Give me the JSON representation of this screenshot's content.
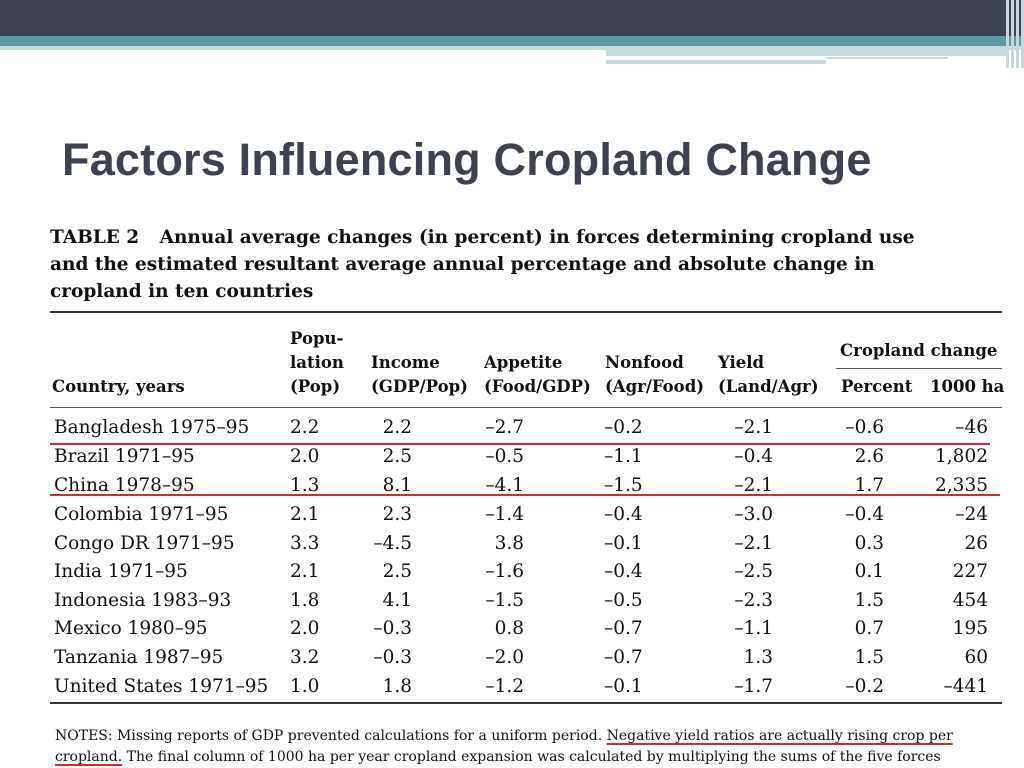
{
  "slide": {
    "title": "Factors Influencing Cropland Change"
  },
  "table": {
    "label": "TABLE 2",
    "caption": "Annual average changes (in percent) in forces determining cropland use and the estimated resultant average annual percentage and absolute change in cropland in ten countries",
    "headers": {
      "country": "Country, years",
      "pop_1": "Popu-",
      "pop_2": "lation",
      "pop_3": "(Pop)",
      "income_1": "Income",
      "income_2": "(GDP/Pop)",
      "appetite_1": "Appetite",
      "appetite_2": "(Food/GDP)",
      "nonfood_1": "Nonfood",
      "nonfood_2": "(Agr/Food)",
      "yield_1": "Yield",
      "yield_2": "(Land/Agr)",
      "cropland_change": "Cropland change",
      "percent": "Percent",
      "ha": "1000 ha"
    },
    "rows": [
      {
        "country": "Bangladesh 1975–95",
        "pop": "2.2",
        "income": "2.2",
        "appetite": "–2.7",
        "nonfood": "–0.2",
        "yield": "–2.1",
        "percent": "–0.6",
        "ha": "–46"
      },
      {
        "country": "Brazil 1971–95",
        "pop": "2.0",
        "income": "2.5",
        "appetite": "–0.5",
        "nonfood": "–1.1",
        "yield": "–0.4",
        "percent": "2.6",
        "ha": "1,802"
      },
      {
        "country": "China 1978–95",
        "pop": "1.3",
        "income": "8.1",
        "appetite": "–4.1",
        "nonfood": "–1.5",
        "yield": "–2.1",
        "percent": "1.7",
        "ha": "2,335"
      },
      {
        "country": "Colombia 1971–95",
        "pop": "2.1",
        "income": "2.3",
        "appetite": "–1.4",
        "nonfood": "–0.4",
        "yield": "–3.0",
        "percent": "–0.4",
        "ha": "–24"
      },
      {
        "country": "Congo DR 1971–95",
        "pop": "3.3",
        "income": "–4.5",
        "appetite": "3.8",
        "nonfood": "–0.1",
        "yield": "–2.1",
        "percent": "0.3",
        "ha": "26"
      },
      {
        "country": "India 1971–95",
        "pop": "2.1",
        "income": "2.5",
        "appetite": "–1.6",
        "nonfood": "–0.4",
        "yield": "–2.5",
        "percent": "0.1",
        "ha": "227"
      },
      {
        "country": "Indonesia 1983–93",
        "pop": "1.8",
        "income": "4.1",
        "appetite": "–1.5",
        "nonfood": "–0.5",
        "yield": "–2.3",
        "percent": "1.5",
        "ha": "454"
      },
      {
        "country": "Mexico 1980–95",
        "pop": "2.0",
        "income": "–0.3",
        "appetite": "0.8",
        "nonfood": "–0.7",
        "yield": "–1.1",
        "percent": "0.7",
        "ha": "195"
      },
      {
        "country": "Tanzania 1987–95",
        "pop": "3.2",
        "income": "–0.3",
        "appetite": "–2.0",
        "nonfood": "–0.7",
        "yield": "1.3",
        "percent": "1.5",
        "ha": "60"
      },
      {
        "country": "United States 1971–95",
        "pop": "1.0",
        "income": "1.8",
        "appetite": "–1.2",
        "nonfood": "–0.1",
        "yield": "–1.7",
        "percent": "–0.2",
        "ha": "–441"
      }
    ],
    "notes": {
      "part1": "NOTES: Missing reports of GDP prevented calculations for a uniform period. ",
      "part2": "Negative yield ratios are actually rising crop per cropland.",
      "part3": " The final column of 1000 ha per year cropland expansion was calculated by multiplying the sums of the five forces"
    }
  },
  "colors": {
    "header_dark": "#3e4152",
    "header_teal": "#5b9ba0",
    "title": "#3d4152",
    "highlight_red": "#d42a2a"
  }
}
